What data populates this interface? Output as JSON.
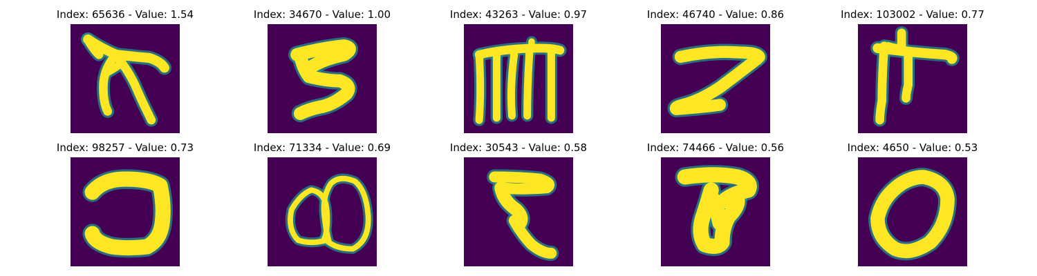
{
  "figure": {
    "panels": [
      {
        "index": "65636",
        "value": "1.54",
        "title": "Index: 65636 - Value: 1.54",
        "glyph": "handwritten-glyph-a"
      },
      {
        "index": "34670",
        "value": "1.00",
        "title": "Index: 34670 - Value: 1.00",
        "glyph": "handwritten-5"
      },
      {
        "index": "43263",
        "value": "0.97",
        "title": "Index: 43263 - Value: 0.97",
        "glyph": "handwritten-glyph-m"
      },
      {
        "index": "46740",
        "value": "0.86",
        "title": "Index: 46740 - Value: 0.86",
        "glyph": "handwritten-7"
      },
      {
        "index": "103002",
        "value": "0.77",
        "title": "Index: 103002 - Value: 0.77",
        "glyph": "handwritten-glyph-cross"
      },
      {
        "index": "98257",
        "value": "0.73",
        "title": "Index: 98257 - Value: 0.73",
        "glyph": "handwritten-hook"
      },
      {
        "index": "71334",
        "value": "0.69",
        "title": "Index: 71334 - Value: 0.69",
        "glyph": "handwritten-loops"
      },
      {
        "index": "30543",
        "value": "0.58",
        "title": "Index: 30543 - Value: 0.58",
        "glyph": "handwritten-zigzag"
      },
      {
        "index": "74466",
        "value": "0.56",
        "title": "Index: 74466 - Value: 0.56",
        "glyph": "handwritten-blob-t"
      },
      {
        "index": "4650",
        "value": "0.53",
        "title": "Index: 4650 - Value: 0.53",
        "glyph": "handwritten-0"
      }
    ],
    "colors": {
      "background": "#440154",
      "mid": "#21918c",
      "highlight": "#fde725"
    }
  }
}
